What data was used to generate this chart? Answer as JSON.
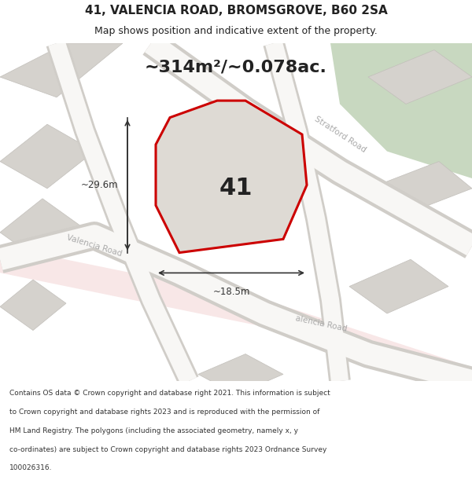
{
  "title_line1": "41, VALENCIA ROAD, BROMSGROVE, B60 2SA",
  "title_line2": "Map shows position and indicative extent of the property.",
  "area_text": "~314m²/~0.078ac.",
  "label_number": "41",
  "dim_vertical": "~29.6m",
  "dim_horizontal": "~18.5m",
  "footer_lines": [
    "Contains OS data © Crown copyright and database right 2021. This information is subject",
    "to Crown copyright and database rights 2023 and is reproduced with the permission of",
    "HM Land Registry. The polygons (including the associated geometry, namely x, y",
    "co-ordinates) are subject to Crown copyright and database rights 2023 Ordnance Survey",
    "100026316."
  ],
  "map_bg": "#e8e6e2",
  "plot_outline": "#cc0000",
  "green_area_color": "#c8d8c0",
  "dim_color": "#333333",
  "text_color": "#222222",
  "road_label_color": "#aaaaaa",
  "block_color": "#d5d2cd",
  "block_edge_color": "#c2bfba"
}
